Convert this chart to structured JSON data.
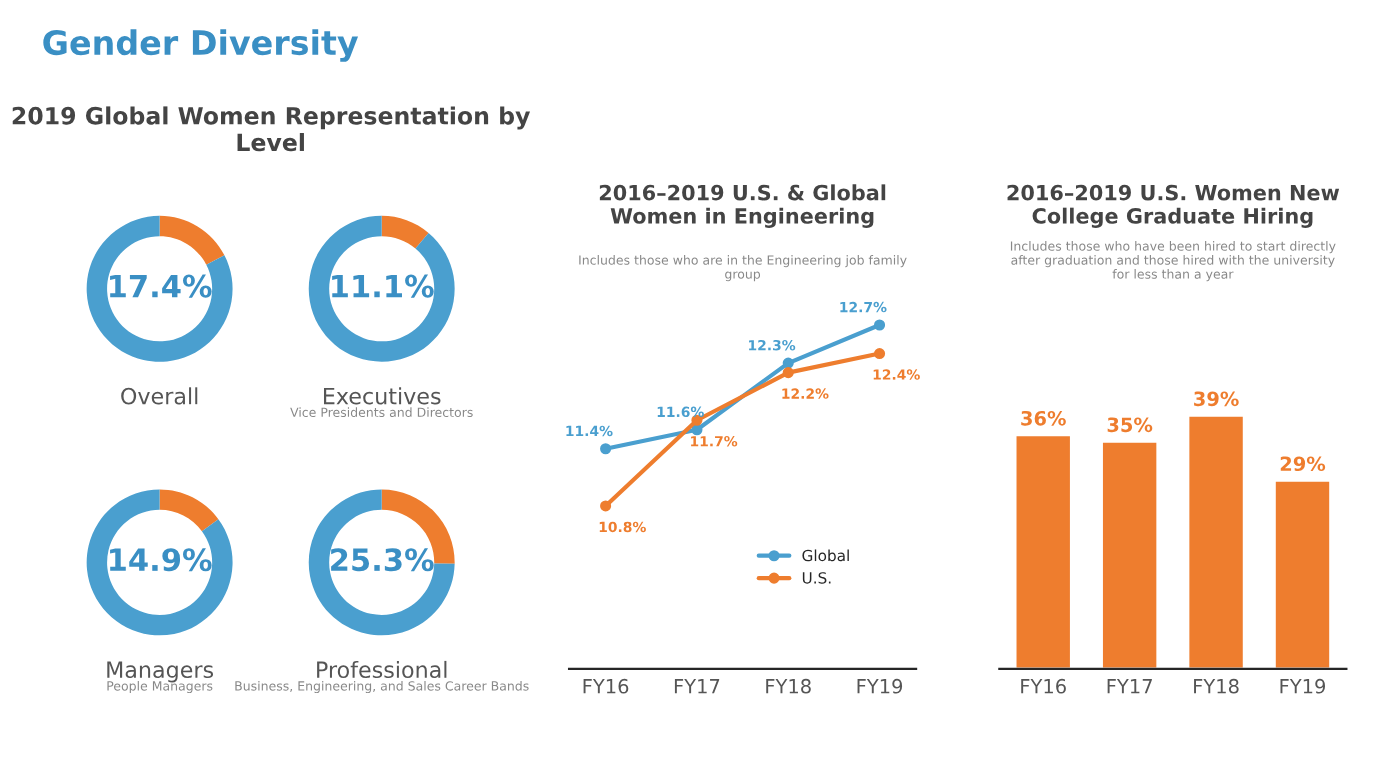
{
  "chart_data": [
    {
      "type": "donut",
      "annotations": [
        "Gender Diversity",
        "2019 Global Women Representation by Level"
      ],
      "title": "Overall",
      "categories": [
        null,
        null
      ],
      "values": [
        17.4,
        82.6
      ],
      "colors": [
        "#ee7d2e",
        "#4a9fcf"
      ],
      "value_labels": [
        "17.4%",
        null
      ]
    },
    {
      "type": "donut",
      "title": "Executives",
      "subtitle": "Vice Presidents and Directors",
      "categories": [
        null,
        null
      ],
      "values": [
        11.1,
        88.9
      ],
      "colors": [
        "#ee7d2e",
        "#4a9fcf"
      ],
      "value_labels": [
        "11.1%",
        null
      ]
    },
    {
      "type": "donut",
      "title": "Managers",
      "subtitle": "People Managers",
      "categories": [
        null,
        null
      ],
      "values": [
        14.9,
        85.1
      ],
      "colors": [
        "#ee7d2e",
        "#4a9fcf"
      ],
      "value_labels": [
        "14.9%",
        null
      ]
    },
    {
      "type": "donut",
      "title": "Professional",
      "subtitle": "Business, Engineering, and Sales Career Bands",
      "categories": [
        null,
        null
      ],
      "values": [
        25.3,
        74.7
      ],
      "colors": [
        "#ee7d2e",
        "#4a9fcf"
      ],
      "value_labels": [
        "25.3%",
        null
      ]
    },
    {
      "type": "line",
      "title": "2016–2019 U.S. & Global Women in Engineering",
      "subtitle": "Includes those who are in the Engineering job family group",
      "categories": [
        "FY16",
        "FY17",
        "FY18",
        "FY19"
      ],
      "marker": "circle",
      "legend": "bottom right",
      "tick_labels": "x",
      "series": [
        {
          "name": "Global",
          "color": "#4a9fcf",
          "values": [
            11.4,
            11.6,
            12.3,
            12.7
          ],
          "value_labels": [
            "11.4%",
            "11.6%",
            "12.3%",
            "12.7%"
          ]
        },
        {
          "name": "U.S.",
          "color": "#ee7d2e",
          "values": [
            10.8,
            11.7,
            12.2,
            12.4
          ],
          "value_labels": [
            "10.8%",
            "11.7%",
            "12.2%",
            "12.4%"
          ]
        }
      ]
    },
    {
      "type": "bar",
      "title": "2016–2019 U.S. Women New College Graduate Hiring",
      "subtitle": "Includes those who have been hired to start directly after graduation and those hired with the university for less than a year",
      "categories": [
        "FY16",
        "FY17",
        "FY18",
        "FY19"
      ],
      "values": [
        36,
        35,
        39,
        29
      ],
      "color": "#ee7d2e",
      "value_labels": [
        "36%",
        "35%",
        "39%",
        "29%"
      ],
      "tick_labels": "x"
    }
  ]
}
